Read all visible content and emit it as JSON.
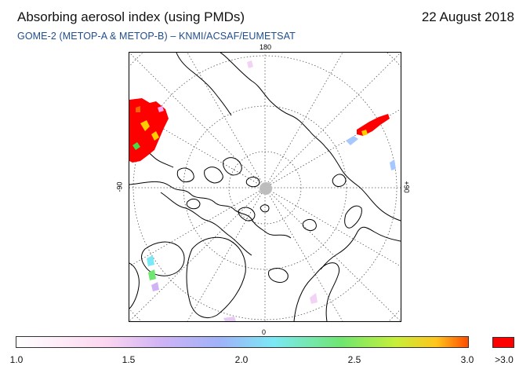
{
  "header": {
    "title": "Absorbing aerosol index (using PMDs)",
    "date": "22 August 2018",
    "subtitle": "GOME-2 (METOP-A & METOP-B)  –  KNMI/ACSAF/EUMETSAT"
  },
  "map": {
    "projection": "north-polar-stereographic",
    "labels": {
      "top": "180",
      "bottom": "0",
      "left": "-90",
      "right": "+90"
    }
  },
  "colorbar": {
    "ticks": [
      "1.0",
      "1.5",
      "2.0",
      "2.5",
      "3.0"
    ],
    "over_label": ">3.0",
    "over_color": "#ff0000",
    "range": [
      1.0,
      3.0
    ]
  }
}
